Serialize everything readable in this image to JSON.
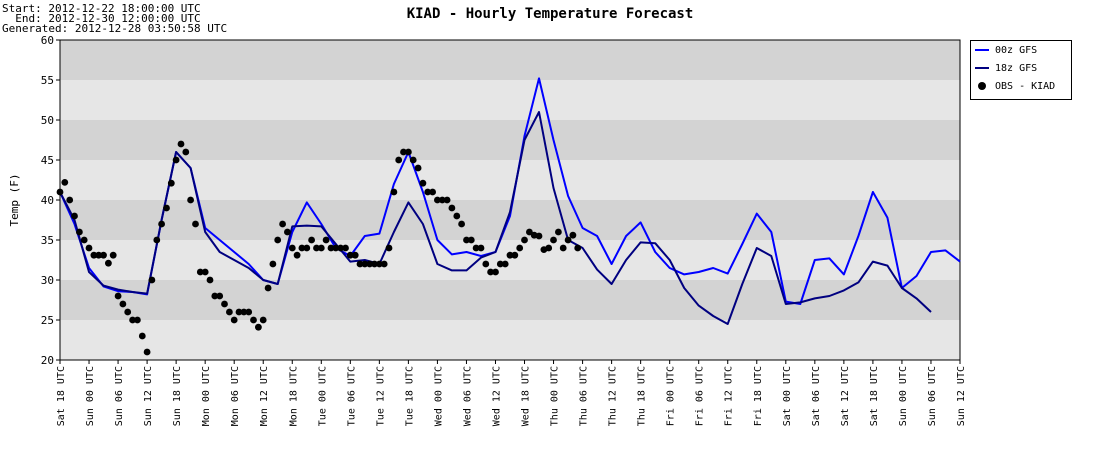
{
  "header": {
    "start": "Start: 2012-12-22 18:00:00 UTC",
    "end": "  End: 2012-12-30 12:00:00 UTC",
    "generated": "Generated: 2012-12-28 03:50:58 UTC",
    "title": "KIAD - Hourly Temperature Forecast"
  },
  "colors": {
    "gfs00": "#0000ff",
    "gfs18": "#000080",
    "obs": "#000000",
    "band_dark": "#d3d3d3",
    "band_light": "#e6e6e6"
  },
  "chart_data": {
    "type": "line",
    "title": "KIAD - Hourly Temperature Forecast",
    "xlabel": "",
    "ylabel": "Temp (F)",
    "ylim": [
      20,
      60
    ],
    "yticks": [
      20,
      25,
      30,
      35,
      40,
      45,
      50,
      55,
      60
    ],
    "xlim_hours": [
      0,
      186
    ],
    "x_unit": "hours since Sat 18 UTC",
    "xticks": [
      {
        "h": 0,
        "label": "Sat 18 UTC"
      },
      {
        "h": 6,
        "label": "Sun 00 UTC"
      },
      {
        "h": 12,
        "label": "Sun 06 UTC"
      },
      {
        "h": 18,
        "label": "Sun 12 UTC"
      },
      {
        "h": 24,
        "label": "Sun 18 UTC"
      },
      {
        "h": 30,
        "label": "Mon 00 UTC"
      },
      {
        "h": 36,
        "label": "Mon 06 UTC"
      },
      {
        "h": 42,
        "label": "Mon 12 UTC"
      },
      {
        "h": 48,
        "label": "Mon 18 UTC"
      },
      {
        "h": 54,
        "label": "Tue 00 UTC"
      },
      {
        "h": 60,
        "label": "Tue 06 UTC"
      },
      {
        "h": 66,
        "label": "Tue 12 UTC"
      },
      {
        "h": 72,
        "label": "Tue 18 UTC"
      },
      {
        "h": 78,
        "label": "Wed 00 UTC"
      },
      {
        "h": 84,
        "label": "Wed 06 UTC"
      },
      {
        "h": 90,
        "label": "Wed 12 UTC"
      },
      {
        "h": 96,
        "label": "Wed 18 UTC"
      },
      {
        "h": 102,
        "label": "Thu 00 UTC"
      },
      {
        "h": 108,
        "label": "Thu 06 UTC"
      },
      {
        "h": 114,
        "label": "Thu 12 UTC"
      },
      {
        "h": 120,
        "label": "Thu 18 UTC"
      },
      {
        "h": 126,
        "label": "Fri 00 UTC"
      },
      {
        "h": 132,
        "label": "Fri 06 UTC"
      },
      {
        "h": 138,
        "label": "Fri 12 UTC"
      },
      {
        "h": 144,
        "label": "Fri 18 UTC"
      },
      {
        "h": 150,
        "label": "Sat 00 UTC"
      },
      {
        "h": 156,
        "label": "Sat 06 UTC"
      },
      {
        "h": 162,
        "label": "Sat 12 UTC"
      },
      {
        "h": 168,
        "label": "Sat 18 UTC"
      },
      {
        "h": 174,
        "label": "Sun 00 UTC"
      },
      {
        "h": 180,
        "label": "Sun 06 UTC"
      },
      {
        "h": 186,
        "label": "Sun 12 UTC"
      }
    ],
    "legend": {
      "placement": "right",
      "entries": [
        "00z GFS",
        "18z GFS",
        "OBS - KIAD"
      ]
    },
    "series": [
      {
        "name": "00z GFS",
        "style": "line",
        "points": [
          [
            0,
            41
          ],
          [
            3,
            37
          ],
          [
            6,
            31.5
          ],
          [
            9,
            29.2
          ],
          [
            12,
            28.6
          ],
          [
            15,
            28.5
          ],
          [
            18,
            28.2
          ],
          [
            21,
            37.5
          ],
          [
            24,
            46
          ],
          [
            27,
            44
          ],
          [
            30,
            36.5
          ],
          [
            33,
            35
          ],
          [
            36,
            33.5
          ],
          [
            39,
            32
          ],
          [
            42,
            30
          ],
          [
            45,
            29.5
          ],
          [
            48,
            36
          ],
          [
            51,
            39.7
          ],
          [
            54,
            37
          ],
          [
            57,
            34
          ],
          [
            60,
            33
          ],
          [
            63,
            35.5
          ],
          [
            66,
            35.8
          ],
          [
            69,
            42
          ],
          [
            72,
            46
          ],
          [
            75,
            41
          ],
          [
            78,
            35
          ],
          [
            81,
            33.2
          ],
          [
            84,
            33.5
          ],
          [
            87,
            33
          ],
          [
            90,
            33.5
          ],
          [
            93,
            38
          ],
          [
            96,
            48
          ],
          [
            99,
            55.2
          ],
          [
            102,
            47.5
          ],
          [
            105,
            40.5
          ],
          [
            108,
            36.5
          ],
          [
            111,
            35.5
          ],
          [
            114,
            32
          ],
          [
            117,
            35.5
          ],
          [
            120,
            37.2
          ],
          [
            123,
            33.5
          ],
          [
            126,
            31.5
          ],
          [
            129,
            30.7
          ],
          [
            132,
            31
          ],
          [
            135,
            31.5
          ],
          [
            138,
            30.8
          ],
          [
            141,
            34.5
          ],
          [
            144,
            38.3
          ],
          [
            147,
            36
          ],
          [
            150,
            27.3
          ],
          [
            153,
            27
          ],
          [
            156,
            32.5
          ],
          [
            159,
            32.7
          ],
          [
            162,
            30.7
          ],
          [
            165,
            35.5
          ],
          [
            168,
            41
          ],
          [
            171,
            37.8
          ],
          [
            174,
            29
          ],
          [
            177,
            30.5
          ],
          [
            180,
            33.5
          ],
          [
            183,
            33.7
          ],
          [
            186,
            32.3
          ]
        ]
      },
      {
        "name": "18z GFS",
        "style": "line",
        "points": [
          [
            0,
            41
          ],
          [
            3,
            37.5
          ],
          [
            6,
            31
          ],
          [
            9,
            29.3
          ],
          [
            12,
            28.8
          ],
          [
            15,
            28.5
          ],
          [
            18,
            28.3
          ],
          [
            21,
            37.5
          ],
          [
            24,
            46
          ],
          [
            27,
            44
          ],
          [
            30,
            36
          ],
          [
            33,
            33.5
          ],
          [
            36,
            32.5
          ],
          [
            39,
            31.5
          ],
          [
            42,
            30
          ],
          [
            45,
            29.5
          ],
          [
            48,
            36.7
          ],
          [
            51,
            36.8
          ],
          [
            54,
            36.7
          ],
          [
            57,
            34.5
          ],
          [
            60,
            32.3
          ],
          [
            63,
            32.5
          ],
          [
            66,
            32
          ],
          [
            69,
            36
          ],
          [
            72,
            39.7
          ],
          [
            75,
            37
          ],
          [
            78,
            32
          ],
          [
            81,
            31.2
          ],
          [
            84,
            31.2
          ],
          [
            87,
            32.8
          ],
          [
            90,
            33.5
          ],
          [
            93,
            38.5
          ],
          [
            96,
            47.5
          ],
          [
            99,
            51
          ],
          [
            102,
            41.5
          ],
          [
            105,
            35
          ],
          [
            108,
            34
          ],
          [
            111,
            31.3
          ],
          [
            114,
            29.5
          ],
          [
            117,
            32.5
          ],
          [
            120,
            34.7
          ],
          [
            123,
            34.6
          ],
          [
            126,
            32.5
          ],
          [
            129,
            29
          ],
          [
            132,
            26.8
          ],
          [
            135,
            25.5
          ],
          [
            138,
            24.5
          ],
          [
            141,
            29.5
          ],
          [
            144,
            34
          ],
          [
            147,
            33
          ],
          [
            150,
            27
          ],
          [
            153,
            27.2
          ],
          [
            156,
            27.7
          ],
          [
            159,
            28
          ],
          [
            162,
            28.7
          ],
          [
            165,
            29.7
          ],
          [
            168,
            32.3
          ],
          [
            171,
            31.8
          ],
          [
            174,
            29
          ],
          [
            177,
            27.7
          ],
          [
            180,
            26
          ]
        ]
      },
      {
        "name": "OBS - KIAD",
        "style": "markers",
        "points": [
          [
            0,
            41
          ],
          [
            1,
            42.2
          ],
          [
            2,
            40
          ],
          [
            3,
            38
          ],
          [
            4,
            36
          ],
          [
            5,
            35
          ],
          [
            6,
            34
          ],
          [
            7,
            33.1
          ],
          [
            8,
            33.1
          ],
          [
            9,
            33.1
          ],
          [
            10,
            32.1
          ],
          [
            11,
            33.1
          ],
          [
            12,
            28
          ],
          [
            13,
            27
          ],
          [
            14,
            26
          ],
          [
            15,
            25
          ],
          [
            16,
            25
          ],
          [
            17,
            23
          ],
          [
            18,
            21
          ],
          [
            19,
            30
          ],
          [
            20,
            35
          ],
          [
            21,
            37
          ],
          [
            22,
            39
          ],
          [
            23,
            42.1
          ],
          [
            24,
            45
          ],
          [
            25,
            47
          ],
          [
            26,
            46
          ],
          [
            27,
            40
          ],
          [
            28,
            37
          ],
          [
            29,
            31
          ],
          [
            30,
            31
          ],
          [
            31,
            30
          ],
          [
            32,
            28
          ],
          [
            33,
            28
          ],
          [
            34,
            27
          ],
          [
            35,
            26
          ],
          [
            36,
            25
          ],
          [
            37,
            26
          ],
          [
            38,
            26
          ],
          [
            39,
            26
          ],
          [
            40,
            25
          ],
          [
            41,
            24.1
          ],
          [
            42,
            25
          ],
          [
            43,
            29
          ],
          [
            44,
            32
          ],
          [
            45,
            35
          ],
          [
            46,
            37
          ],
          [
            47,
            36
          ],
          [
            48,
            34
          ],
          [
            49,
            33.1
          ],
          [
            50,
            34
          ],
          [
            51,
            34
          ],
          [
            52,
            35
          ],
          [
            53,
            34
          ],
          [
            54,
            34
          ],
          [
            55,
            35
          ],
          [
            56,
            34
          ],
          [
            57,
            34
          ],
          [
            58,
            34
          ],
          [
            59,
            34
          ],
          [
            60,
            33.1
          ],
          [
            61,
            33.1
          ],
          [
            62,
            32
          ],
          [
            63,
            32
          ],
          [
            64,
            32
          ],
          [
            65,
            32
          ],
          [
            66,
            32
          ],
          [
            67,
            32
          ],
          [
            68,
            34
          ],
          [
            69,
            41
          ],
          [
            70,
            45
          ],
          [
            71,
            46
          ],
          [
            72,
            46
          ],
          [
            73,
            45
          ],
          [
            74,
            44
          ],
          [
            75,
            42.1
          ],
          [
            76,
            41
          ],
          [
            77,
            41
          ],
          [
            78,
            40
          ],
          [
            79,
            40
          ],
          [
            80,
            40
          ],
          [
            81,
            39
          ],
          [
            82,
            38
          ],
          [
            83,
            37
          ],
          [
            84,
            35
          ],
          [
            85,
            35
          ],
          [
            86,
            34
          ],
          [
            87,
            34
          ],
          [
            88,
            32
          ],
          [
            89,
            31
          ],
          [
            90,
            31
          ],
          [
            91,
            32
          ],
          [
            92,
            32
          ],
          [
            93,
            33.1
          ],
          [
            94,
            33.1
          ],
          [
            95,
            34
          ],
          [
            96,
            35
          ],
          [
            97,
            36
          ],
          [
            98,
            35.6
          ],
          [
            99,
            35.5
          ],
          [
            100,
            33.8
          ],
          [
            101,
            34
          ],
          [
            102,
            35
          ],
          [
            103,
            36
          ],
          [
            104,
            34
          ],
          [
            105,
            35
          ],
          [
            106,
            35.6
          ],
          [
            107,
            34
          ]
        ]
      }
    ]
  }
}
